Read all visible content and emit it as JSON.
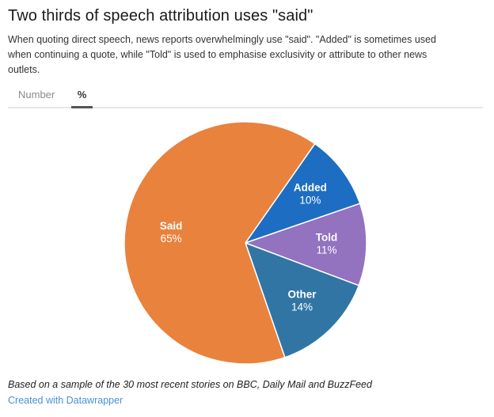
{
  "page": {
    "title": "Two thirds of speech attribution uses \"said\"",
    "description": "When quoting direct speech, news reports overwhelmingly use \"said\". \"Added\" is sometimes used when continuing a quote, while \"Told\" is used to emphasise exclusivity or attribute to other news outlets.",
    "footnote": "Based on a sample of the 30 most recent stories on BBC, Daily Mail and BuzzFeed",
    "attribution": "Created with Datawrapper"
  },
  "tabs": [
    {
      "label": "Number",
      "active": false
    },
    {
      "label": "%",
      "active": true
    }
  ],
  "colors": {
    "link": "#4a90d2",
    "tab_active_underline": "#555555",
    "divider": "#e5e5e5",
    "slice_border": "#ffffff",
    "slice_label_text": "#ffffff"
  },
  "chart_data": {
    "type": "pie",
    "title": "Two thirds of speech attribution uses \"said\"",
    "unit": "%",
    "start_angle_deg": 35,
    "direction": "clockwise",
    "slices": [
      {
        "label": "Added",
        "value": 10,
        "display": "10%",
        "color": "#1d6ec2"
      },
      {
        "label": "Told",
        "value": 11,
        "display": "11%",
        "color": "#9372c0"
      },
      {
        "label": "Other",
        "value": 14,
        "display": "14%",
        "color": "#3175a5"
      },
      {
        "label": "Said",
        "value": 65,
        "display": "65%",
        "color": "#e8823d"
      }
    ]
  }
}
